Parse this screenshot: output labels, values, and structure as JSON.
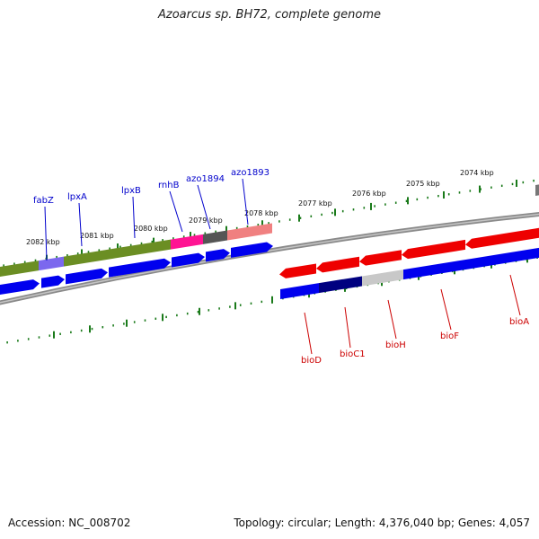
{
  "title": "Azoarcus sp. BH72, complete genome",
  "footer": {
    "accession": "Accession: NC_008702",
    "topology": "Topology: circular; Length: 4,376,040 bp; Genes: 4,057"
  },
  "scale_labels": [
    "2082 kbp",
    "2081 kbp",
    "2080 kbp",
    "2079 kbp",
    "2078 kbp",
    "2077 kbp",
    "2076 kbp",
    "2075 kbp",
    "2074 kbp"
  ],
  "gene_labels": {
    "forward": [
      "fabZ",
      "lpxA",
      "lpxB",
      "rnhB",
      "azo1894",
      "azo1893"
    ],
    "reverse": [
      "bioD",
      "bioC1",
      "bioH",
      "bioF",
      "bioA"
    ]
  },
  "colors": {
    "forward_label": "#0000cc",
    "reverse_label": "#cc0000",
    "scale": "#1a7a1a",
    "backbone": "#808080"
  }
}
